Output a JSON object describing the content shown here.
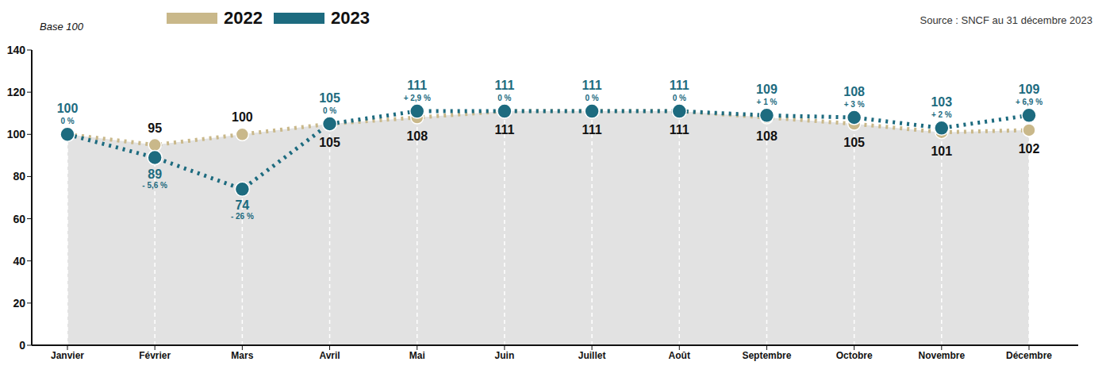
{
  "chart_data": {
    "type": "line",
    "y_label": "Base 100",
    "source": "Source : SNCF au 31 décembre 2023",
    "categories": [
      "Janvier",
      "Février",
      "Mars",
      "Avril",
      "Mai",
      "Juin",
      "Juillet",
      "Août",
      "Septembre",
      "Octobre",
      "Novembre",
      "Décembre"
    ],
    "ylim": [
      0,
      140
    ],
    "yticks": [
      0,
      20,
      40,
      60,
      80,
      100,
      120,
      140
    ],
    "grid": true,
    "legend": "top",
    "data_labels": true,
    "series": [
      {
        "name": "2022",
        "type": "area",
        "color": "#C9B88A",
        "line_style": "dashed",
        "marker": "circle",
        "values": [
          100,
          95,
          100,
          105,
          108,
          111,
          111,
          111,
          108,
          105,
          101,
          102
        ],
        "value_labels": [
          null,
          "95",
          "100",
          "105",
          "108",
          "111",
          "111",
          "111",
          "108",
          "105",
          "101",
          "102"
        ]
      },
      {
        "name": "2023",
        "type": "line",
        "color": "#1D6B7F",
        "line_style": "dashed",
        "marker": "circle",
        "values": [
          100,
          89,
          74,
          105,
          111,
          111,
          111,
          111,
          109,
          108,
          103,
          109
        ],
        "changes": [
          "0 %",
          "- 5,6 %",
          "- 26 %",
          "0 %",
          "+ 2,9 %",
          "0 %",
          "0 %",
          "0 %",
          "+ 1 %",
          "+ 3 %",
          "+ 2 %",
          "+ 6,9 %"
        ]
      }
    ]
  }
}
